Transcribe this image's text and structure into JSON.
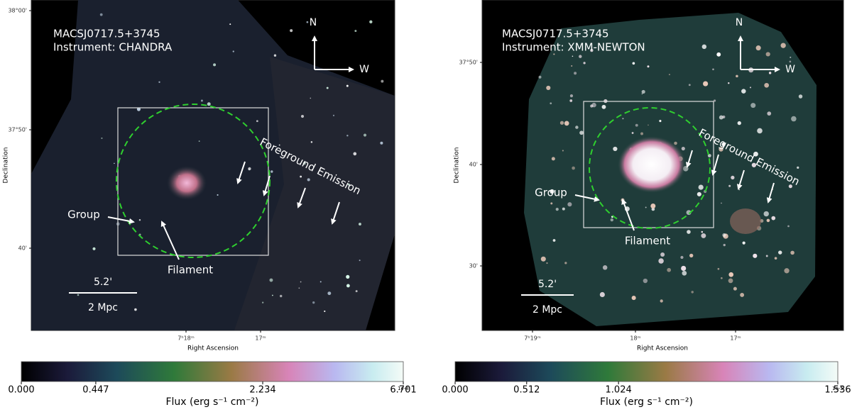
{
  "panels": [
    {
      "target": "MACSJ0717.5+3745",
      "instrument": "Instrument: CHANDRA",
      "compass": {
        "north": "N",
        "west": "W"
      },
      "annotations": {
        "foreground": "Foreground Emission",
        "group": "Group",
        "filament": "Filament"
      },
      "scalebar": {
        "angle": "5.2'",
        "distance": "2 Mpc"
      },
      "y_axis": {
        "label": "Declination",
        "ticks": [
          "38°00'",
          "37°50'",
          "40'"
        ]
      },
      "x_axis": {
        "label": "Right Ascension",
        "ticks": [
          "7ʰ18ᵐ",
          "17ᵐ"
        ]
      },
      "colorbar": {
        "label": "Flux (erg s⁻¹ cm⁻²)",
        "ticks": [
          "0.000",
          "0.447",
          "2.234",
          "6.701"
        ],
        "multiplier": "1e-8"
      }
    },
    {
      "target": "MACSJ0717.5+3745",
      "instrument": "Instrument: XMM-NEWTON",
      "compass": {
        "north": "N",
        "west": "W"
      },
      "annotations": {
        "foreground": "Foreground Emission",
        "group": "Group",
        "filament": "Filament"
      },
      "scalebar": {
        "angle": "5.2'",
        "distance": "2 Mpc"
      },
      "y_axis": {
        "label": "Declination",
        "ticks": [
          "37°50'",
          "40'",
          "30'"
        ]
      },
      "x_axis": {
        "label": "Right Ascension",
        "ticks": [
          "7ʰ19ᵐ",
          "18ᵐ",
          "17ᵐ"
        ]
      },
      "colorbar": {
        "label": "Flux (erg s⁻¹ cm⁻²)",
        "ticks": [
          "0.000",
          "0.512",
          "1.024",
          "1.536"
        ],
        "multiplier": "1e-5"
      }
    }
  ]
}
